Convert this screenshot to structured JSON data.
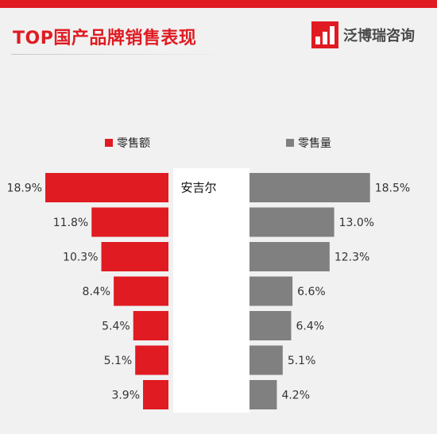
{
  "header": {
    "title": "TOP国产品牌销售表现",
    "brand_name": "泛博瑞咨询",
    "logo_icon": "bar-chart-logo-icon"
  },
  "colors": {
    "accent": "#e01b22",
    "sales_value_bar": "#e01b22",
    "sales_volume_bar": "#808080"
  },
  "chart_data": {
    "type": "bar",
    "orientation": "horizontal-butterfly",
    "categories": [
      "安吉尔",
      "",
      "",
      "",
      "",
      "",
      ""
    ],
    "series": [
      {
        "name": "零售额",
        "values": [
          18.9,
          11.8,
          10.3,
          8.4,
          5.4,
          5.1,
          3.9
        ],
        "labels": [
          "18.9%",
          "11.8%",
          "10.3%",
          "8.4%",
          "5.4%",
          "5.1%",
          "3.9%"
        ],
        "color": "#e01b22"
      },
      {
        "name": "零售量",
        "values": [
          18.5,
          13.0,
          12.3,
          6.6,
          6.4,
          5.1,
          4.2
        ],
        "labels": [
          "18.5%",
          "13.0%",
          "12.3%",
          "6.6%",
          "6.4%",
          "5.1%",
          "4.2%"
        ],
        "color": "#808080"
      }
    ],
    "legend_placement": "top",
    "grid": false
  }
}
